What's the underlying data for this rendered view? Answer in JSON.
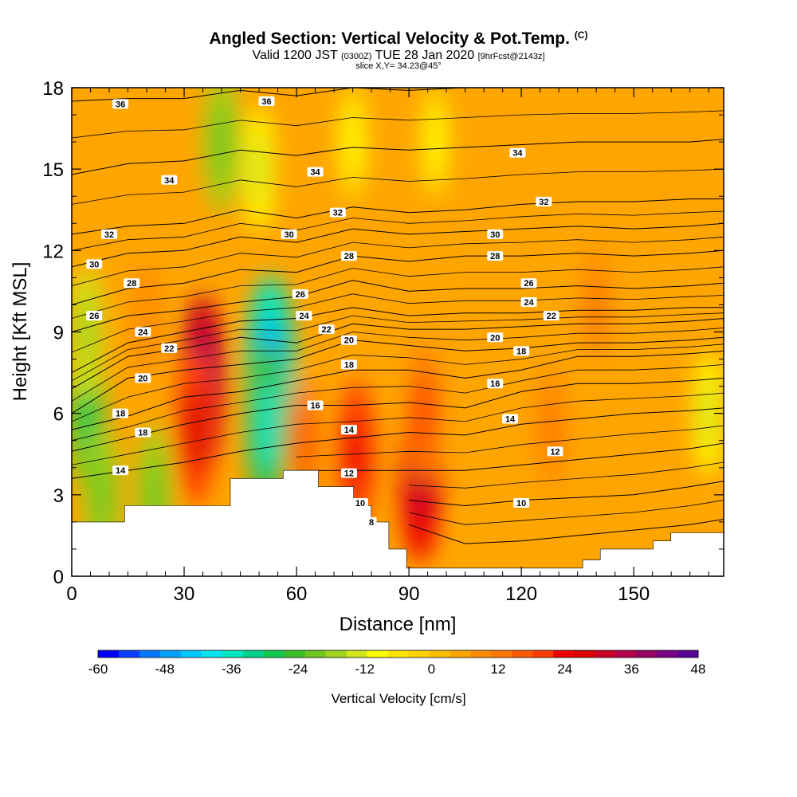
{
  "title": {
    "main": "Angled Section: Vertical Velocity & Pot.Temp.",
    "main_badge": "(C)",
    "valid_prefix": "Valid 1200 JST",
    "valid_utc": "(0300Z)",
    "valid_date": "TUE 28 Jan 2020",
    "valid_fcst": "[9hrFcst@2143z]",
    "slice": "slice X,Y= 34.23@45°"
  },
  "chart_data": {
    "type": "heatmap",
    "xlabel": "Distance [nm]",
    "ylabel": "Height [Kft MSL]",
    "xlim": [
      0,
      174
    ],
    "ylim": [
      0,
      18
    ],
    "xticks": [
      "0",
      "30",
      "60",
      "90",
      "120",
      "150"
    ],
    "xtick_values": [
      0,
      30,
      60,
      90,
      120,
      150
    ],
    "yticks": [
      "0",
      "3",
      "6",
      "9",
      "12",
      "15",
      "18"
    ],
    "ytick_values": [
      0,
      3,
      6,
      9,
      12,
      15,
      18
    ],
    "colorbar": {
      "label": "Vertical Velocity [cm/s]",
      "min": -60,
      "max": 48,
      "tick_labels": [
        "-60",
        "-48",
        "-36",
        "-24",
        "-12",
        "0",
        "12",
        "24",
        "36",
        "48"
      ],
      "tick_values": [
        -60,
        -48,
        -36,
        -24,
        -12,
        0,
        12,
        24,
        36,
        48
      ],
      "colors": [
        "#0000ff",
        "#0a3cff",
        "#0078ff",
        "#00a0ff",
        "#00c8ff",
        "#00e6f0",
        "#00e6c0",
        "#00d28c",
        "#14c850",
        "#3cbe28",
        "#6ec81e",
        "#a0d21e",
        "#d2e61e",
        "#ffff00",
        "#ffe600",
        "#ffd200",
        "#ffbe00",
        "#ffa500",
        "#ff8c00",
        "#ff7800",
        "#ff5a00",
        "#ff3c00",
        "#f00000",
        "#dc0000",
        "#c80028",
        "#b4004b",
        "#960064",
        "#780082",
        "#5a0096"
      ]
    },
    "velocity_cells": [
      {
        "x": 4,
        "y": 6.0,
        "v": -28
      },
      {
        "x": 8,
        "y": 3.0,
        "v": -22
      },
      {
        "x": 22,
        "y": 3.0,
        "v": -22
      },
      {
        "x": 4,
        "y": 9.0,
        "v": -18
      },
      {
        "x": 35,
        "y": 7.0,
        "v": 42
      },
      {
        "x": 33,
        "y": 5.5,
        "v": 30
      },
      {
        "x": 53,
        "y": 7.5,
        "v": -48
      },
      {
        "x": 52,
        "y": 5.5,
        "v": -36
      },
      {
        "x": 50,
        "y": 15.0,
        "v": -14
      },
      {
        "x": 40,
        "y": 16.0,
        "v": -22
      },
      {
        "x": 76,
        "y": 4.5,
        "v": 26
      },
      {
        "x": 93,
        "y": 3.5,
        "v": 32
      },
      {
        "x": 94,
        "y": 6.0,
        "v": 20
      },
      {
        "x": 62,
        "y": 5.0,
        "v": 16
      },
      {
        "x": 128,
        "y": 5.5,
        "v": 14
      },
      {
        "x": 170,
        "y": 6.0,
        "v": -14
      },
      {
        "x": 75,
        "y": 16.0,
        "v": -10
      },
      {
        "x": 97,
        "y": 16.0,
        "v": -8
      },
      {
        "x": 140,
        "y": 10.0,
        "v": 12
      },
      {
        "x": 20,
        "y": 9.5,
        "v": 10
      }
    ],
    "terrain_height_kft": [
      2.0,
      2.0,
      2.0,
      2.6,
      2.6,
      2.6,
      2.6,
      2.6,
      2.6,
      3.6,
      3.6,
      3.6,
      3.9,
      3.9,
      3.3,
      3.3,
      2.6,
      2.0,
      1.0,
      0.3,
      0.3,
      0.3,
      0.3,
      0.3,
      0.3,
      0.3,
      0.3,
      0.3,
      0.3,
      0.6,
      1.0,
      1.0,
      1.0,
      1.3,
      1.6,
      1.6,
      1.6
    ],
    "isentropes": [
      {
        "label": "36",
        "z": [
          17.5,
          17.6,
          17.6,
          17.9,
          17.7,
          18.0,
          17.9,
          18.0,
          18.1,
          18.1,
          18.1,
          18.2,
          18.2
        ]
      },
      {
        "label": "34",
        "z": [
          14.8,
          15.2,
          15.3,
          15.7,
          15.5,
          15.8,
          15.7,
          15.8,
          15.9,
          16.0,
          16.0,
          16.0,
          16.1
        ]
      },
      {
        "label": "32",
        "z": [
          12.6,
          12.9,
          13.0,
          13.5,
          13.2,
          13.6,
          13.4,
          13.5,
          13.7,
          13.8,
          13.8,
          13.9,
          13.9
        ]
      },
      {
        "label": "30",
        "z": [
          11.4,
          11.9,
          12.0,
          12.5,
          12.3,
          12.8,
          12.6,
          12.7,
          12.8,
          12.9,
          12.8,
          12.9,
          13.0
        ]
      },
      {
        "label": "28",
        "z": [
          10.0,
          10.6,
          10.8,
          11.3,
          11.2,
          11.8,
          11.6,
          11.8,
          11.8,
          11.9,
          11.8,
          11.9,
          12.0
        ]
      },
      {
        "label": "26",
        "z": [
          9.0,
          9.6,
          9.8,
          10.1,
          10.3,
          10.9,
          10.5,
          10.6,
          10.6,
          10.7,
          10.6,
          10.7,
          10.8
        ]
      },
      {
        "label": "24",
        "z": [
          7.5,
          8.6,
          9.0,
          9.4,
          9.5,
          9.9,
          9.6,
          9.7,
          9.7,
          9.8,
          9.8,
          9.9,
          9.9
        ]
      },
      {
        "label": "22",
        "z": [
          6.9,
          8.1,
          8.4,
          8.8,
          8.6,
          9.3,
          9.1,
          9.1,
          9.2,
          9.3,
          9.3,
          9.4,
          9.5
        ]
      },
      {
        "label": "20",
        "z": [
          6.0,
          7.3,
          7.6,
          7.8,
          8.0,
          8.7,
          8.5,
          8.3,
          8.4,
          8.6,
          8.6,
          8.7,
          8.8
        ]
      },
      {
        "label": "18",
        "z": [
          5.4,
          5.9,
          6.6,
          6.8,
          7.2,
          7.6,
          7.6,
          7.3,
          7.6,
          8.1,
          8.1,
          8.2,
          8.3
        ]
      },
      {
        "label": "16",
        "z": [
          4.6,
          5.1,
          5.6,
          6.0,
          6.3,
          6.3,
          6.4,
          6.2,
          6.8,
          7.1,
          7.1,
          7.2,
          7.3
        ]
      },
      {
        "label": "14",
        "z": [
          3.6,
          3.9,
          4.2,
          4.6,
          4.9,
          5.1,
          5.3,
          5.2,
          5.6,
          5.8,
          6.0,
          6.1,
          6.2
        ]
      },
      {
        "label": "12",
        "z": [
          null,
          null,
          null,
          null,
          3.9,
          3.9,
          3.9,
          3.9,
          4.1,
          4.3,
          4.5,
          4.7,
          4.9
        ]
      },
      {
        "label": "10",
        "z": [
          null,
          null,
          null,
          null,
          null,
          null,
          2.8,
          2.6,
          2.8,
          2.9,
          3.0,
          3.3,
          3.5
        ]
      },
      {
        "label": "8",
        "z": [
          null,
          null,
          null,
          null,
          null,
          null,
          1.9,
          1.2,
          1.3,
          1.5,
          1.7,
          1.9,
          2.1
        ]
      }
    ],
    "isentrope_x": [
      0,
      15,
      30,
      45,
      60,
      75,
      90,
      105,
      120,
      135,
      150,
      165,
      174
    ],
    "labels": [
      {
        "t": "36",
        "x": 13,
        "y": 17.4
      },
      {
        "t": "36",
        "x": 52,
        "y": 17.5
      },
      {
        "t": "34",
        "x": 26,
        "y": 14.6
      },
      {
        "t": "34",
        "x": 65,
        "y": 14.9
      },
      {
        "t": "34",
        "x": 119,
        "y": 15.6
      },
      {
        "t": "32",
        "x": 10,
        "y": 12.6
      },
      {
        "t": "32",
        "x": 71,
        "y": 13.4
      },
      {
        "t": "32",
        "x": 126,
        "y": 13.8
      },
      {
        "t": "30",
        "x": 6,
        "y": 11.5
      },
      {
        "t": "30",
        "x": 58,
        "y": 12.6
      },
      {
        "t": "30",
        "x": 113,
        "y": 12.6
      },
      {
        "t": "28",
        "x": 16,
        "y": 10.8
      },
      {
        "t": "28",
        "x": 74,
        "y": 11.8
      },
      {
        "t": "28",
        "x": 113,
        "y": 11.8
      },
      {
        "t": "26",
        "x": 6,
        "y": 9.6
      },
      {
        "t": "26",
        "x": 61,
        "y": 10.4
      },
      {
        "t": "26",
        "x": 122,
        "y": 10.8
      },
      {
        "t": "24",
        "x": 19,
        "y": 9.0
      },
      {
        "t": "24",
        "x": 62,
        "y": 9.6
      },
      {
        "t": "24",
        "x": 122,
        "y": 10.1
      },
      {
        "t": "22",
        "x": 26,
        "y": 8.4
      },
      {
        "t": "22",
        "x": 68,
        "y": 9.1
      },
      {
        "t": "22",
        "x": 128,
        "y": 9.6
      },
      {
        "t": "20",
        "x": 19,
        "y": 7.3
      },
      {
        "t": "20",
        "x": 74,
        "y": 8.7
      },
      {
        "t": "20",
        "x": 113,
        "y": 8.8
      },
      {
        "t": "18",
        "x": 13,
        "y": 6.0
      },
      {
        "t": "18",
        "x": 19,
        "y": 5.3
      },
      {
        "t": "18",
        "x": 74,
        "y": 7.8
      },
      {
        "t": "18",
        "x": 120,
        "y": 8.3
      },
      {
        "t": "16",
        "x": 65,
        "y": 6.3
      },
      {
        "t": "16",
        "x": 113,
        "y": 7.1
      },
      {
        "t": "14",
        "x": 13,
        "y": 3.9
      },
      {
        "t": "14",
        "x": 74,
        "y": 5.4
      },
      {
        "t": "14",
        "x": 117,
        "y": 5.8
      },
      {
        "t": "12",
        "x": 74,
        "y": 3.8
      },
      {
        "t": "12",
        "x": 129,
        "y": 4.6
      },
      {
        "t": "10",
        "x": 77,
        "y": 2.7
      },
      {
        "t": "10",
        "x": 120,
        "y": 2.7
      },
      {
        "t": "8",
        "x": 80,
        "y": 2.0
      }
    ]
  }
}
